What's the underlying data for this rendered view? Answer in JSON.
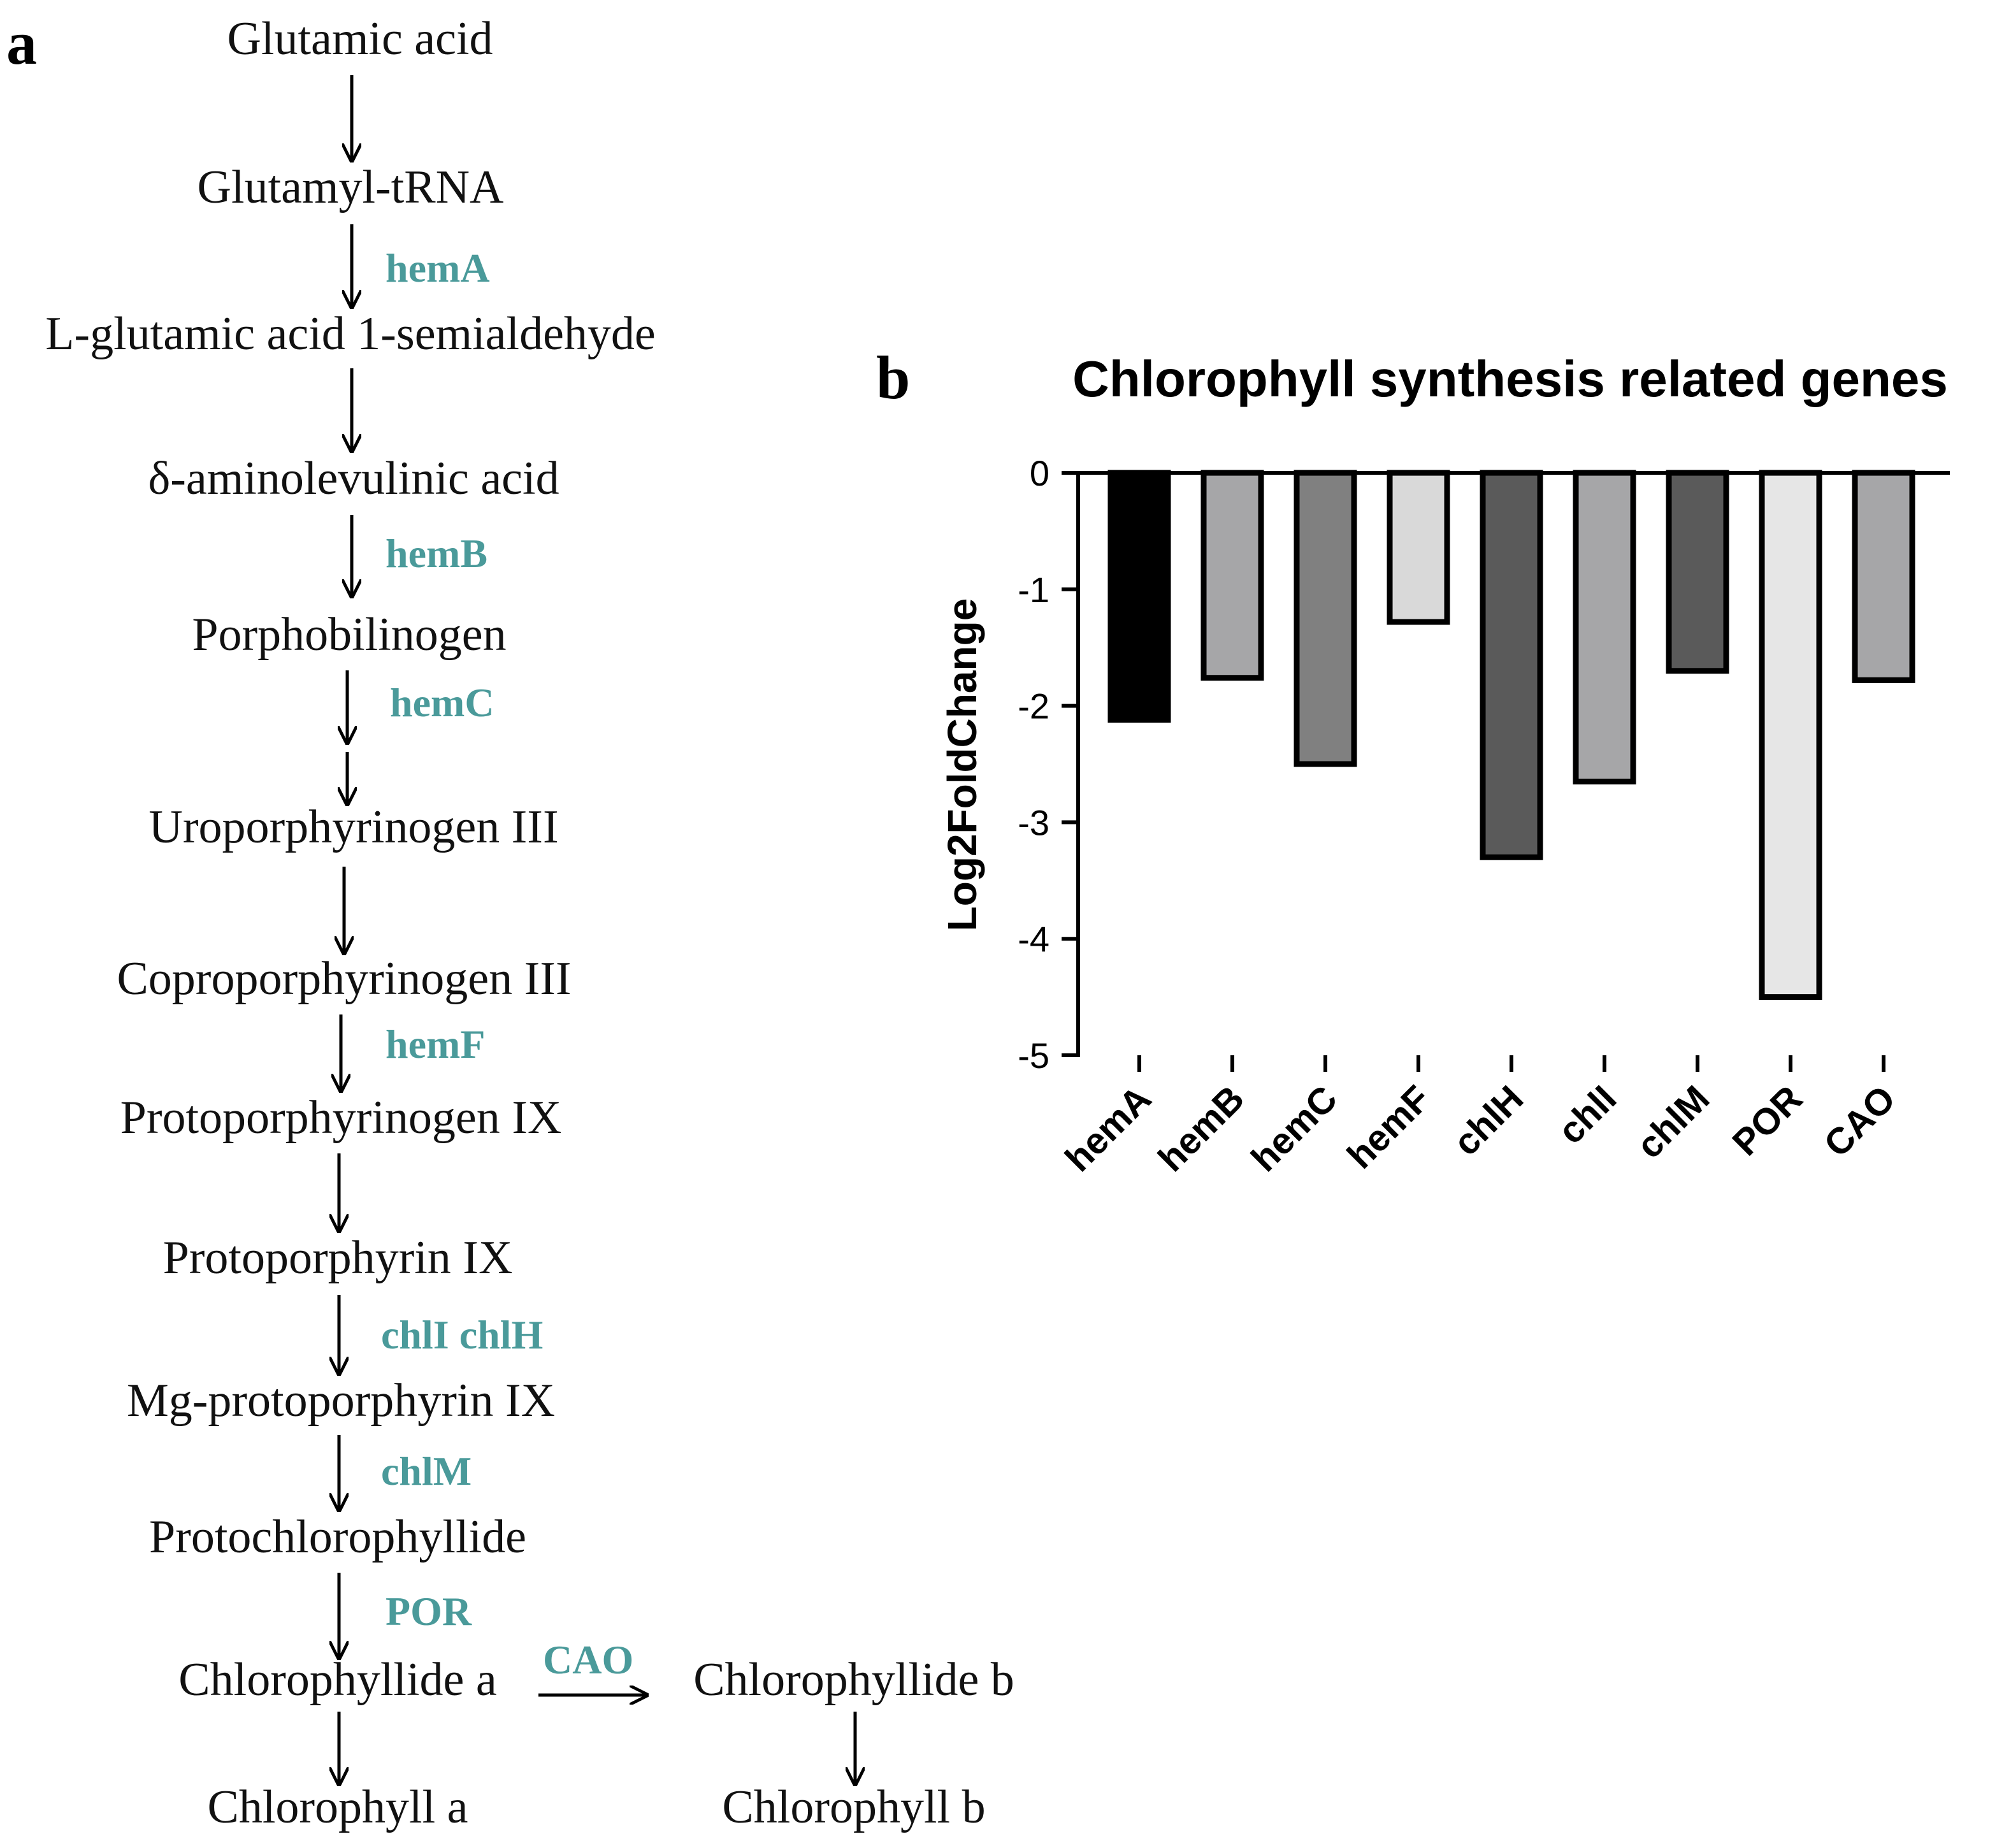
{
  "panel_a": {
    "letter": "a",
    "compounds": {
      "glutamic_acid": "Glutamic acid",
      "glutamyl_trna": "Glutamyl-tRNA",
      "l_glutamic_semialdehyde": "L-glutamic acid 1-semialdehyde",
      "ala": "δ-aminolevulinic acid",
      "porphobilinogen": "Porphobilinogen",
      "uroporphyrinogen": "Uroporphyrinogen III",
      "coproporphyrinogen": "Coproporphyrinogen III",
      "protoporphyrinogen": "Protoporphyrinogen IX",
      "protoporphyrin": "Protoporphyrin IX",
      "mg_protoporphyrin": "Mg-protoporphyrin IX",
      "protochlorophyllide": "Protochlorophyllide",
      "chlorophyllide_a": "Chlorophyllide a",
      "chlorophyllide_b": "Chlorophyllide b",
      "chlorophyll_a": "Chlorophyll a",
      "chlorophyll_b": "Chlorophyll b"
    },
    "enzymes": {
      "hemA": "hemA",
      "hemB": "hemB",
      "hemC": "hemC",
      "hemF": "hemF",
      "chlI_chlH": "chlI chlH",
      "chlM": "chlM",
      "POR": "POR",
      "CAO": "CAO"
    },
    "colors": {
      "enzyme_text": "#4a9a9a",
      "arrow": "#000000",
      "compound_text": "#111111"
    }
  },
  "panel_b": {
    "letter": "b"
  },
  "chart_data": {
    "type": "bar",
    "title": "Chlorophyll synthesis related genes",
    "xlabel": "",
    "ylabel": "Log2FoldChange",
    "categories": [
      "hemA",
      "hemB",
      "hemC",
      "hemF",
      "chlH",
      "chlI",
      "chlM",
      "POR",
      "CAO"
    ],
    "values": [
      -2.12,
      -1.76,
      -2.5,
      -1.28,
      -3.3,
      -2.65,
      -1.7,
      -4.5,
      -1.78
    ],
    "ylim": [
      -5,
      0
    ],
    "yticks": [
      0,
      -1,
      -2,
      -3,
      -4,
      -5
    ],
    "grid": false,
    "bar_colors": [
      "#000000",
      "#a6a6a8",
      "#808080",
      "#d9d9d9",
      "#5a5a5a",
      "#a6a6a8",
      "#5a5a5a",
      "#e6e6e6",
      "#a6a6a8"
    ],
    "bar_edge_color": "#000000"
  }
}
